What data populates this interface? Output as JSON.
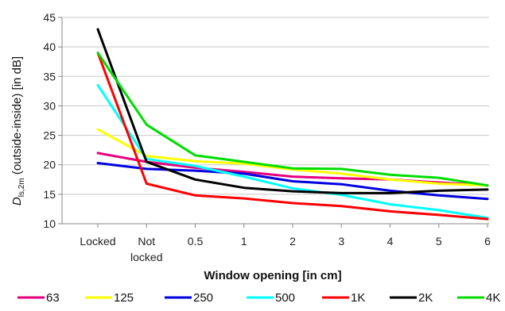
{
  "chart_data": {
    "type": "line",
    "ylabel_main": "D",
    "ylabel_sub": "ls,2m",
    "ylabel_rest": " (outside-inside) [in dB]",
    "xlabel": "Window opening [in cm]",
    "categories": [
      {
        "line1": "Locked",
        "line2": ""
      },
      {
        "line1": "Not",
        "line2": "locked"
      },
      {
        "line1": "0.5",
        "line2": ""
      },
      {
        "line1": "1",
        "line2": ""
      },
      {
        "line1": "2",
        "line2": ""
      },
      {
        "line1": "3",
        "line2": ""
      },
      {
        "line1": "4",
        "line2": ""
      },
      {
        "line1": "5",
        "line2": ""
      },
      {
        "line1": "6",
        "line2": ""
      }
    ],
    "ylim": [
      10,
      45
    ],
    "yticks": [
      10,
      15,
      20,
      25,
      30,
      35,
      40,
      45
    ],
    "grid": "horizontal",
    "legend_position": "bottom",
    "series": [
      {
        "name": "63",
        "color": "#e6007e",
        "values": [
          22.0,
          20.5,
          19.5,
          18.8,
          18.0,
          17.7,
          17.5,
          17.0,
          16.5
        ]
      },
      {
        "name": "125",
        "color": "#ffff00",
        "values": [
          26.0,
          21.5,
          20.6,
          20.2,
          19.2,
          18.5,
          17.5,
          16.8,
          16.5
        ]
      },
      {
        "name": "250",
        "color": "#0000e0",
        "values": [
          20.3,
          19.3,
          19.0,
          18.5,
          17.2,
          16.7,
          15.6,
          14.8,
          14.2
        ]
      },
      {
        "name": "500",
        "color": "#00ffff",
        "values": [
          33.5,
          21.0,
          19.8,
          18.0,
          16.0,
          14.9,
          13.3,
          12.3,
          11.0
        ]
      },
      {
        "name": "1K",
        "color": "#ff0000",
        "values": [
          39.0,
          16.8,
          14.8,
          14.3,
          13.5,
          13.0,
          12.1,
          11.5,
          10.8
        ]
      },
      {
        "name": "2K",
        "color": "#000000",
        "values": [
          43.0,
          20.5,
          17.5,
          16.1,
          15.5,
          15.2,
          15.2,
          15.6,
          15.8
        ]
      },
      {
        "name": "4K",
        "color": "#00dd00",
        "values": [
          39.0,
          26.8,
          21.6,
          20.5,
          19.4,
          19.3,
          18.3,
          17.8,
          16.5
        ]
      }
    ]
  }
}
